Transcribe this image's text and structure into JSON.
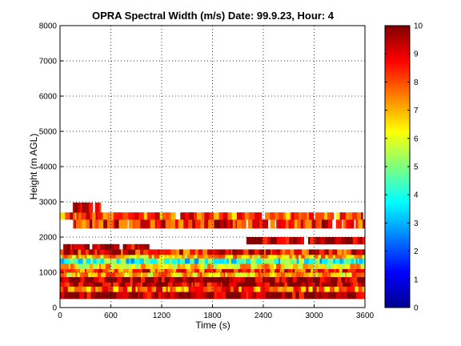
{
  "chart_data": {
    "type": "heatmap",
    "title": "OPRA Spectral Width (m/s)  Date: 99.9.23, Hour: 4",
    "xlabel": "Time (s)",
    "ylabel": "Height (m AGL)",
    "xlim": [
      0,
      3600
    ],
    "ylim": [
      0,
      8000
    ],
    "xticks": [
      0,
      600,
      1200,
      1800,
      2400,
      3000,
      3600
    ],
    "yticks": [
      0,
      1000,
      2000,
      3000,
      4000,
      5000,
      6000,
      7000,
      8000
    ],
    "grid": true,
    "colorbar": {
      "min": 0,
      "max": 10,
      "ticks": [
        0,
        1,
        2,
        3,
        4,
        5,
        6,
        7,
        8,
        9,
        10
      ],
      "colormap": "jet"
    },
    "bands": [
      {
        "y0": 250,
        "y1": 450,
        "value": 9.7,
        "x0": 0,
        "x1": 3600
      },
      {
        "y0": 450,
        "y1": 600,
        "value": 7.8,
        "x0": 0,
        "x1": 3600
      },
      {
        "y0": 600,
        "y1": 720,
        "value": 9.5,
        "x0": 0,
        "x1": 3600
      },
      {
        "y0": 720,
        "y1": 870,
        "value": 9.8,
        "x0": 0,
        "x1": 3600
      },
      {
        "y0": 870,
        "y1": 1000,
        "value": 7.0,
        "x0": 0,
        "x1": 3600
      },
      {
        "y0": 1000,
        "y1": 1100,
        "value": 8.2,
        "x0": 0,
        "x1": 3600
      },
      {
        "y0": 1100,
        "y1": 1250,
        "value": 6.5,
        "x0": 0,
        "x1": 3600
      },
      {
        "y0": 1250,
        "y1": 1400,
        "value": 4.2,
        "x0": 0,
        "x1": 3600
      },
      {
        "y0": 1400,
        "y1": 1500,
        "value": 6.8,
        "x0": 0,
        "x1": 3600
      },
      {
        "y0": 1500,
        "y1": 1650,
        "value": 8.6,
        "x0": 0,
        "x1": 3600
      },
      {
        "y0": 1650,
        "y1": 1800,
        "value": 9.6,
        "x0": 0,
        "x1": 1050
      },
      {
        "y0": 1800,
        "y1": 2000,
        "value": 9.8,
        "x0": 2200,
        "x1": 3600
      },
      {
        "y0": 2250,
        "y1": 2500,
        "value": 8.6,
        "x0": 150,
        "x1": 3600
      },
      {
        "y0": 2500,
        "y1": 2700,
        "value": 8.0,
        "x0": 0,
        "x1": 3600
      },
      {
        "y0": 2700,
        "y1": 2980,
        "value": 9.6,
        "x0": 150,
        "x1": 480
      }
    ]
  }
}
